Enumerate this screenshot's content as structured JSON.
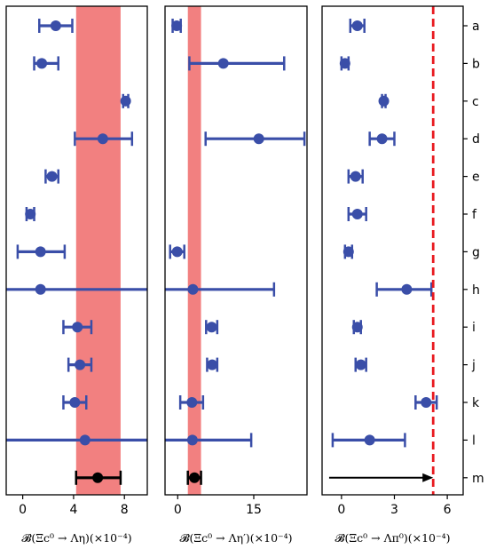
{
  "row_labels": [
    "a",
    "b",
    "c",
    "d",
    "e",
    "f",
    "g",
    "h",
    "i",
    "j",
    "k",
    "l",
    "m"
  ],
  "colors": {
    "points": "#3a4ea8",
    "combined": "#000000",
    "band": "#f28080",
    "limit": "#e8191f"
  },
  "chart_data": [
    {
      "type": "errorbar",
      "xlabel": "𝓑(Ξc⁰ → Λη)(×10⁻⁴)",
      "xlim": [
        -1.3,
        9.8
      ],
      "xticks": [
        0,
        4,
        8
      ],
      "band": [
        4.2,
        7.7
      ],
      "rows": [
        {
          "label": "a",
          "value": 2.6,
          "lo": 1.3,
          "hi": 3.9
        },
        {
          "label": "b",
          "value": 1.5,
          "lo": 0.9,
          "hi": 2.8
        },
        {
          "label": "c",
          "value": 8.1,
          "lo": 7.9,
          "hi": 8.3
        },
        {
          "label": "d",
          "value": 6.3,
          "lo": 4.1,
          "hi": 8.6
        },
        {
          "label": "e",
          "value": 2.3,
          "lo": 1.8,
          "hi": 2.8
        },
        {
          "label": "f",
          "value": 0.6,
          "lo": 0.3,
          "hi": 0.9
        },
        {
          "label": "g",
          "value": 1.4,
          "lo": -0.4,
          "hi": 3.3
        },
        {
          "label": "h",
          "value": 1.4,
          "lo": -1.3,
          "hi": 9.8
        },
        {
          "label": "i",
          "value": 4.3,
          "lo": 3.2,
          "hi": 5.4
        },
        {
          "label": "j",
          "value": 4.5,
          "lo": 3.6,
          "hi": 5.4
        },
        {
          "label": "k",
          "value": 4.1,
          "lo": 3.2,
          "hi": 5.0
        },
        {
          "label": "l",
          "value": 4.9,
          "lo": -1.3,
          "hi": 9.8
        },
        {
          "label": "m",
          "value": 5.9,
          "lo": 4.2,
          "hi": 7.7,
          "combined": true
        }
      ]
    },
    {
      "type": "errorbar",
      "xlabel": "𝓑(Ξc⁰ → Λη′)(×10⁻⁴)",
      "xlim": [
        -2.5,
        25.5
      ],
      "xticks": [
        0,
        15
      ],
      "band": [
        2.0,
        4.6
      ],
      "rows": [
        {
          "label": "a",
          "value": -0.2,
          "lo": -1.0,
          "hi": 0.6
        },
        {
          "label": "b",
          "value": 9.0,
          "lo": 2.3,
          "hi": 21.0
        },
        {
          "label": "d",
          "value": 16.0,
          "lo": 5.5,
          "hi": 25.0
        },
        {
          "label": "g",
          "value": -0.1,
          "lo": -1.5,
          "hi": 1.3
        },
        {
          "label": "h",
          "value": 3.0,
          "lo": -2.5,
          "hi": 19.0
        },
        {
          "label": "i",
          "value": 6.7,
          "lo": 5.6,
          "hi": 7.8
        },
        {
          "label": "j",
          "value": 6.8,
          "lo": 5.8,
          "hi": 7.8
        },
        {
          "label": "k",
          "value": 2.8,
          "lo": 0.5,
          "hi": 5.0
        },
        {
          "label": "l",
          "value": 2.9,
          "lo": -2.5,
          "hi": 14.5
        },
        {
          "label": "m",
          "value": 3.3,
          "lo": 2.0,
          "hi": 4.6,
          "combined": true
        }
      ]
    },
    {
      "type": "errorbar",
      "xlabel": "𝓑(Ξc⁰ → Λπ⁰)(×10⁻⁴)",
      "xlim": [
        -1.1,
        6.9
      ],
      "xticks": [
        0,
        3,
        6
      ],
      "limit_line": 5.2,
      "arrow": {
        "row": "m",
        "from": -0.7,
        "to": 5.2
      },
      "rows": [
        {
          "label": "a",
          "value": 0.9,
          "lo": 0.5,
          "hi": 1.3
        },
        {
          "label": "b",
          "value": 0.2,
          "lo": 0.0,
          "hi": 0.4
        },
        {
          "label": "c",
          "value": 2.4,
          "lo": 2.3,
          "hi": 2.5
        },
        {
          "label": "d",
          "value": 2.3,
          "lo": 1.6,
          "hi": 3.0
        },
        {
          "label": "e",
          "value": 0.8,
          "lo": 0.4,
          "hi": 1.2
        },
        {
          "label": "f",
          "value": 0.9,
          "lo": 0.4,
          "hi": 1.4
        },
        {
          "label": "g",
          "value": 0.4,
          "lo": 0.2,
          "hi": 0.6
        },
        {
          "label": "h",
          "value": 3.7,
          "lo": 2.0,
          "hi": 5.1
        },
        {
          "label": "i",
          "value": 0.9,
          "lo": 0.7,
          "hi": 1.1
        },
        {
          "label": "j",
          "value": 1.1,
          "lo": 0.8,
          "hi": 1.4
        },
        {
          "label": "k",
          "value": 4.8,
          "lo": 4.2,
          "hi": 5.4
        },
        {
          "label": "l",
          "value": 1.6,
          "lo": -0.5,
          "hi": 3.6
        }
      ]
    }
  ]
}
